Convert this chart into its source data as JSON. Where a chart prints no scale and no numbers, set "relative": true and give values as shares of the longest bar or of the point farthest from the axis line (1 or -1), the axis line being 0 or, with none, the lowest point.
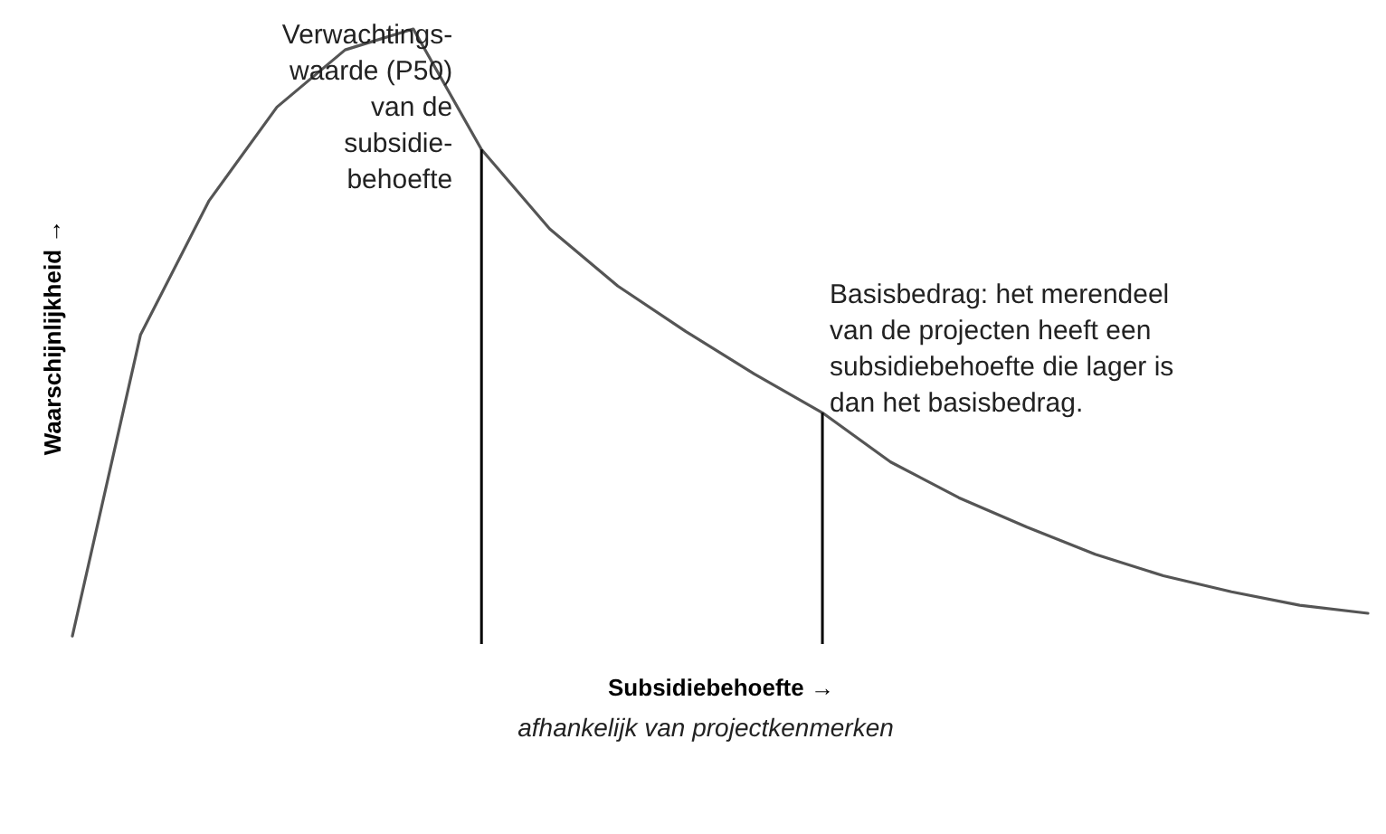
{
  "chart_data": {
    "type": "line",
    "relative": true,
    "xlabel": "Subsidiebehoefte →",
    "ylabel": "Waarschijnlijkheid →",
    "tick_labels": false,
    "grid": false,
    "marker": "none",
    "line_style": "solid",
    "categories": [
      null,
      null,
      null,
      null,
      null,
      null,
      null,
      null,
      null,
      null,
      null,
      null,
      null,
      null,
      null,
      null,
      null,
      null,
      null,
      null
    ],
    "series": [
      {
        "color": "#555555",
        "values": [
          0.013,
          0.503,
          0.72,
          0.873,
          0.966,
          1,
          0.804,
          0.675,
          0.582,
          0.508,
          0.439,
          0.376,
          0.296,
          0.238,
          0.19,
          0.146,
          0.111,
          0.085,
          0.063,
          0.05
        ]
      }
    ],
    "annotations": [
      "Verwachtings-\nwaarde (P50)\nvan de\nsubsidie-\nbehoefte",
      "Basisbedrag: het merendeel\nvan de projecten heeft een\nsubsidiebehoefte die lager is\ndan het basisbedrag.",
      "afhankelijk van projectkenmerken"
    ]
  }
}
